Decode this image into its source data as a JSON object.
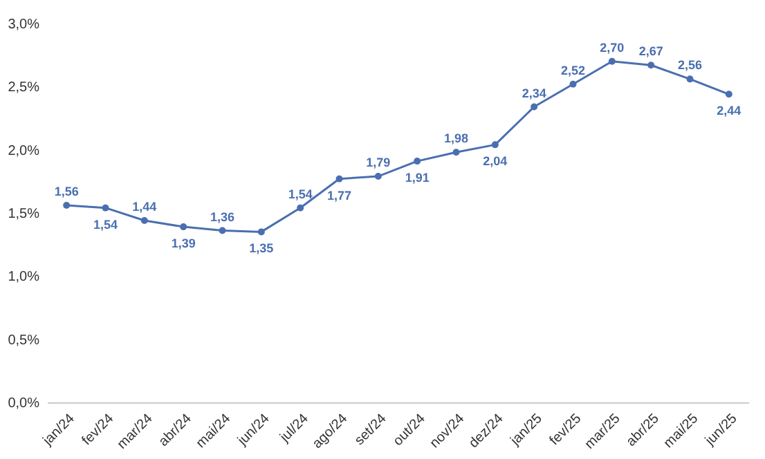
{
  "chart_data": {
    "type": "line",
    "categories": [
      "jan/24",
      "fev/24",
      "mar/24",
      "abr/24",
      "mai/24",
      "jun/24",
      "jul/24",
      "ago/24",
      "set/24",
      "out/24",
      "nov/24",
      "dez/24",
      "jan/25",
      "fev/25",
      "mar/25",
      "abr/25",
      "mai/25",
      "jun/25"
    ],
    "series": [
      {
        "color": "#4a6fb0",
        "values": [
          1.56,
          1.54,
          1.44,
          1.39,
          1.36,
          1.35,
          1.54,
          1.77,
          1.79,
          1.91,
          1.98,
          2.04,
          2.34,
          2.52,
          2.7,
          2.67,
          2.56,
          2.44
        ],
        "value_labels": [
          "1,56",
          "1,54",
          "1,44",
          "1,39",
          "1,36",
          "1,35",
          "1,54",
          "1,77",
          "1,79",
          "1,91",
          "1,98",
          "2,04",
          "2,34",
          "2,52",
          "2,70",
          "2,67",
          "2,56",
          "2,44"
        ]
      }
    ],
    "ylim": [
      0,
      3.0
    ],
    "yticks": [
      {
        "value": 0,
        "label": "0,0%"
      },
      {
        "value": 0.5,
        "label": "0,5%"
      },
      {
        "value": 1.0,
        "label": "1,0%"
      },
      {
        "value": 1.5,
        "label": "1,5%"
      },
      {
        "value": 2.0,
        "label": "2,0%"
      },
      {
        "value": 2.5,
        "label": "2,5%"
      },
      {
        "value": 3.0,
        "label": "3,0%"
      }
    ],
    "grid": false,
    "marker": "circle",
    "line_style": "solid"
  }
}
